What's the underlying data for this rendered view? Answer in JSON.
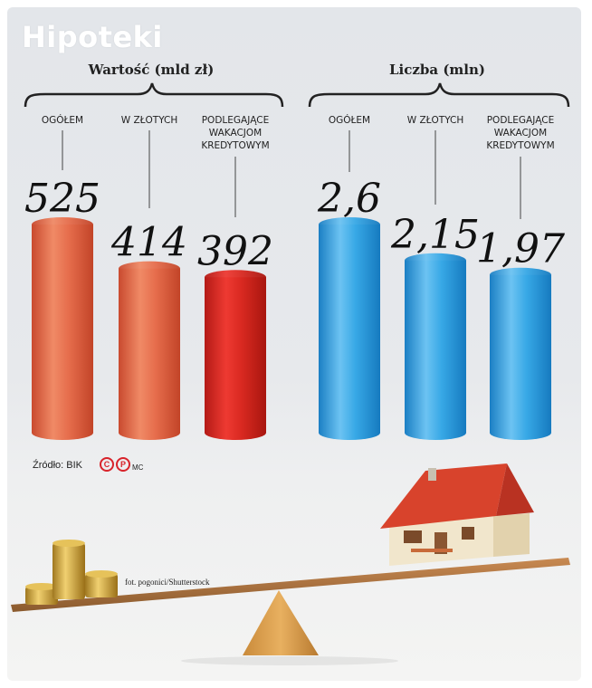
{
  "title": "Hipoteki",
  "source": "Źródło: BIK",
  "source_logo": [
    "C",
    "P"
  ],
  "author": "MC",
  "photo_credit": "fot. pogonici/Shutterstock",
  "colors": {
    "orange": "#e8674a",
    "red": "#d42a24",
    "blue": "#2a9fe0",
    "background": "#e5e7ea"
  },
  "chart_data": [
    {
      "type": "bar",
      "title": "Wartość (mld zł)",
      "categories": [
        "OGÓŁEM",
        "W ZŁOTYCH",
        "PODLEGAJĄCE WAKACJOM KREDYTOWYM"
      ],
      "values": [
        525,
        414,
        392
      ],
      "value_labels": [
        "525",
        "414",
        "392"
      ],
      "bar_colors": [
        "orange",
        "orange",
        "red"
      ]
    },
    {
      "type": "bar",
      "title": "Liczba (mln)",
      "categories": [
        "OGÓŁEM",
        "W ZŁOTYCH",
        "PODLEGAJĄCE WAKACJOM KREDYTOWYM"
      ],
      "values": [
        2.6,
        2.15,
        1.97
      ],
      "value_labels": [
        "2,6",
        "2,15",
        "1,97"
      ],
      "bar_colors": [
        "blue",
        "blue",
        "blue"
      ]
    }
  ]
}
